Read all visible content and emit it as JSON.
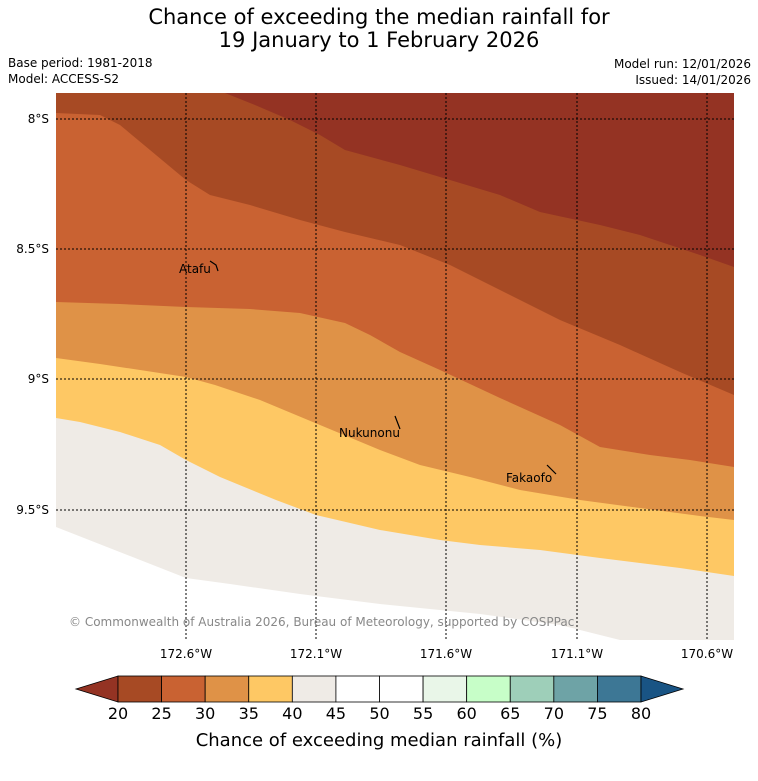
{
  "title": {
    "line1": "Chance of exceeding the median rainfall for",
    "line2": "19 January to 1 February 2026"
  },
  "meta": {
    "base_period": "Base period: 1981-2018",
    "model": "Model: ACCESS-S2",
    "model_run": "Model run: 12/01/2026",
    "issued": "Issued: 14/01/2026"
  },
  "map": {
    "lat_labels": [
      "8°S",
      "8.5°S",
      "9°S",
      "9.5°S"
    ],
    "lon_labels": [
      "172.6°W",
      "172.1°W",
      "171.6°W",
      "171.1°W",
      "170.6°W"
    ],
    "places": [
      {
        "name": "Atafu"
      },
      {
        "name": "Nukunonu"
      },
      {
        "name": "Fakaofo"
      }
    ],
    "copyright": "© Commonwealth of Australia 2026, Bureau of Meteorology, supported by COSPPac"
  },
  "colorbar": {
    "ticks": [
      "20",
      "25",
      "30",
      "35",
      "40",
      "45",
      "50",
      "55",
      "60",
      "65",
      "70",
      "75",
      "80"
    ],
    "colors": [
      "#a74a24",
      "#c96232",
      "#df9247",
      "#fec864",
      "#efebe6",
      "#ffffff",
      "#ffffff",
      "#e9f6e8",
      "#c7fec8",
      "#9ecfb9",
      "#6ea3a6",
      "#3d7795"
    ],
    "under_color": "#943323",
    "over_color": "#195484",
    "label": "Chance of exceeding median rainfall (%)"
  }
}
